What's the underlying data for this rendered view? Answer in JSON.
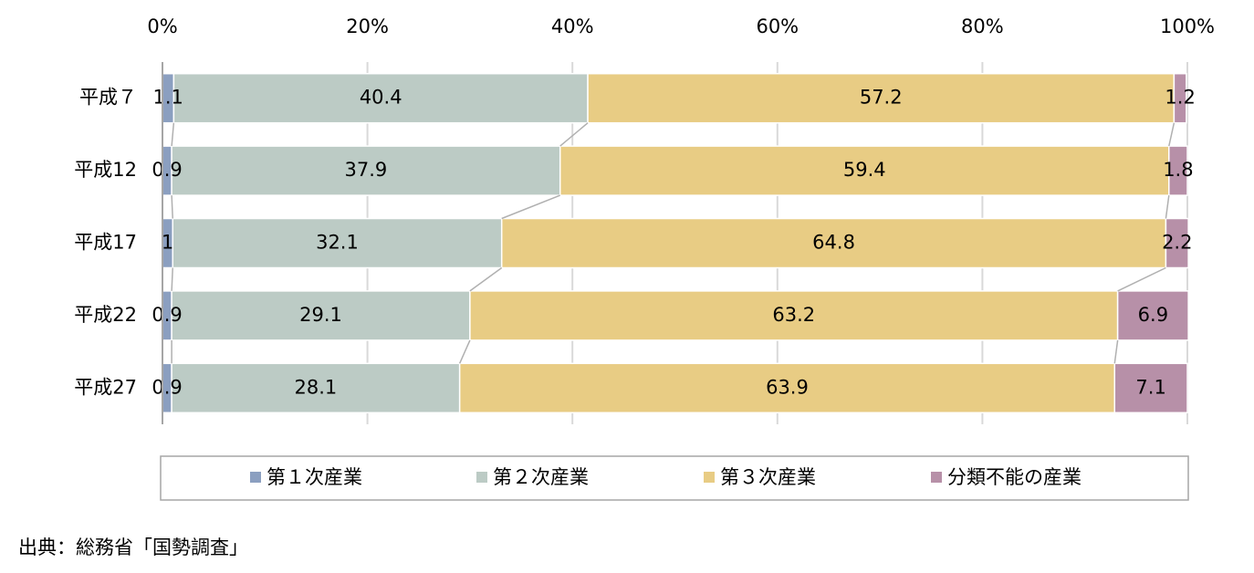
{
  "chart_data": {
    "type": "stacked-bar-horizontal",
    "categories": [
      "平成７",
      "平成12",
      "平成17",
      "平成22",
      "平成27"
    ],
    "series": [
      {
        "name": "第１次産業",
        "color": "#8b9fc0",
        "values": [
          1.1,
          0.9,
          1.0,
          0.9,
          0.9
        ]
      },
      {
        "name": "第２次産業",
        "color": "#bccbc5",
        "values": [
          40.4,
          37.9,
          32.1,
          29.1,
          28.1
        ]
      },
      {
        "name": "第３次産業",
        "color": "#e8cc84",
        "values": [
          57.2,
          59.4,
          64.8,
          63.2,
          63.9
        ]
      },
      {
        "name": "分類不能の産業",
        "color": "#b790a8",
        "values": [
          1.2,
          1.8,
          2.2,
          6.9,
          7.1
        ]
      }
    ],
    "xlim": [
      0,
      100
    ],
    "xticks": [
      {
        "value": 0,
        "label": "0%"
      },
      {
        "value": 20,
        "label": "20%"
      },
      {
        "value": 40,
        "label": "40%"
      },
      {
        "value": 60,
        "label": "60%"
      },
      {
        "value": 80,
        "label": "80%"
      },
      {
        "value": 100,
        "label": "100%"
      }
    ],
    "grid": true,
    "legend": "bottom",
    "source": "出典：総務省「国勢調査」"
  }
}
